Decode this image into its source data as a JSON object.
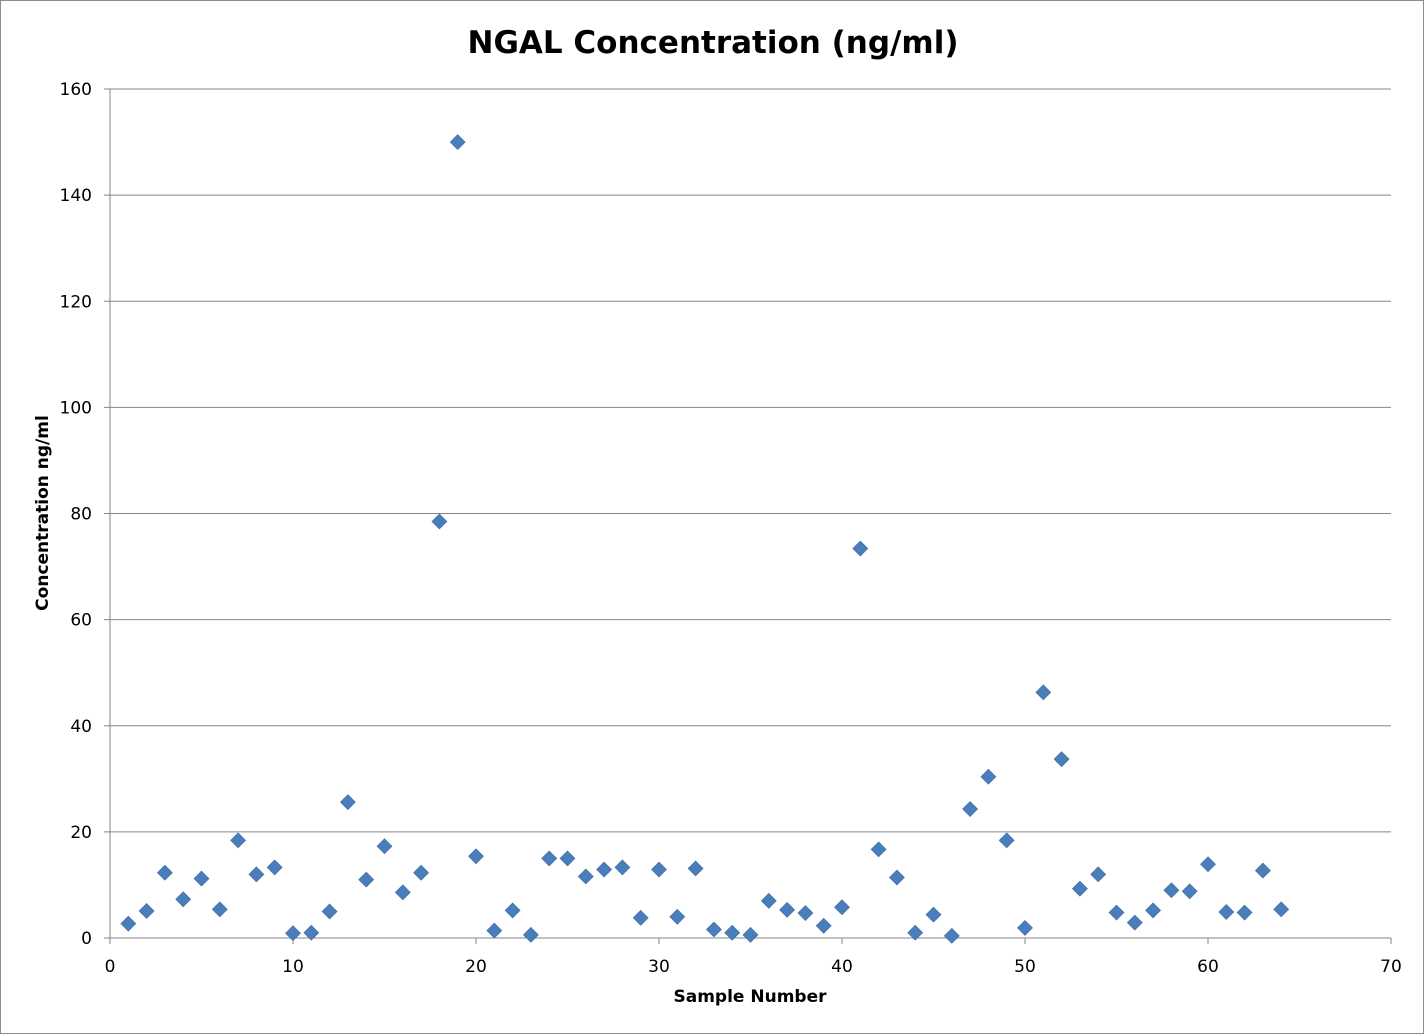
{
  "chart_data": {
    "type": "scatter",
    "title": "NGAL Concentration (ng/ml)",
    "xlabel": "Sample Number",
    "ylabel": "Concentration ng/ml",
    "xlim": [
      0,
      70
    ],
    "ylim": [
      0,
      160
    ],
    "x_ticks": [
      0,
      10,
      20,
      30,
      40,
      50,
      60,
      70
    ],
    "y_ticks": [
      0,
      20,
      40,
      60,
      80,
      100,
      120,
      140,
      160
    ],
    "grid": "horizontal major gridlines",
    "legend": "none",
    "marker": "diamond",
    "colors": {
      "marker": "#4a7ebb",
      "gridline": "#868686",
      "axis": "#868686"
    },
    "series": [
      {
        "x": [
          1,
          2,
          3,
          4,
          5,
          6,
          7,
          8,
          9,
          10,
          11,
          12,
          13,
          14,
          15,
          16,
          17,
          18,
          19,
          20,
          21,
          22,
          23,
          24,
          25,
          26,
          27,
          28,
          29,
          30,
          31,
          32,
          33,
          34,
          35,
          36,
          37,
          38,
          39,
          40,
          41,
          42,
          43,
          44,
          45,
          46,
          47,
          48,
          49,
          50,
          51,
          52,
          53,
          54,
          55,
          56,
          57,
          58,
          59,
          60,
          61,
          62,
          63,
          64
        ],
        "y": [
          2.7,
          5.1,
          12.3,
          7.3,
          11.2,
          5.4,
          18.4,
          12.0,
          13.3,
          0.9,
          1.0,
          5.0,
          25.6,
          11.0,
          17.3,
          8.6,
          12.3,
          78.5,
          150.0,
          15.4,
          1.4,
          5.2,
          0.6,
          15.0,
          15.0,
          11.6,
          12.9,
          13.3,
          3.8,
          12.9,
          4.0,
          13.1,
          1.6,
          1.0,
          0.6,
          7.0,
          5.3,
          4.7,
          2.3,
          5.8,
          73.4,
          16.7,
          11.4,
          1.0,
          4.4,
          0.4,
          24.3,
          30.4,
          18.4,
          1.9,
          46.3,
          33.7,
          9.3,
          12.0,
          4.8,
          2.9,
          5.2,
          9.0,
          8.8,
          13.9,
          4.9,
          4.8,
          12.7,
          5.4
        ]
      }
    ]
  }
}
